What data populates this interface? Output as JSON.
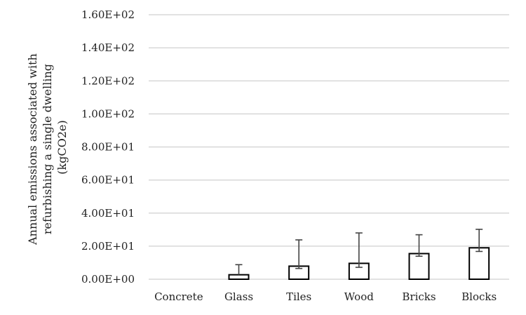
{
  "chart_data": {
    "type": "bar",
    "title": "",
    "xlabel": "",
    "ylabel": [
      "Annual emissions associated with",
      "refurbishing a single dwelling",
      "(kgCO2e)"
    ],
    "categories": [
      "Concrete",
      "Glass",
      "Tiles",
      "Wood",
      "Bricks",
      "Blocks"
    ],
    "values": [
      0,
      2.7,
      7.9,
      9.6,
      15.5,
      19.0
    ],
    "error_low": [
      0,
      0,
      1.4,
      2.4,
      1.6,
      2.2
    ],
    "error_high": [
      0,
      6.1,
      15.9,
      18.4,
      11.4,
      11.2
    ],
    "ylim": [
      0,
      160
    ],
    "yticks": [
      0,
      20,
      40,
      60,
      80,
      100,
      120,
      140,
      160
    ],
    "ytick_labels": [
      "0.00E+00",
      "2.00E+01",
      "4.00E+01",
      "6.00E+01",
      "8.00E+01",
      "1.00E+02",
      "1.20E+02",
      "1.40E+02",
      "1.60E+02"
    ],
    "grid": true,
    "legend": false,
    "colors": {
      "bar_fill": "#ffffff",
      "bar_stroke": "#000000",
      "grid": "#d0d0d0",
      "error_bar": "#444444"
    }
  }
}
